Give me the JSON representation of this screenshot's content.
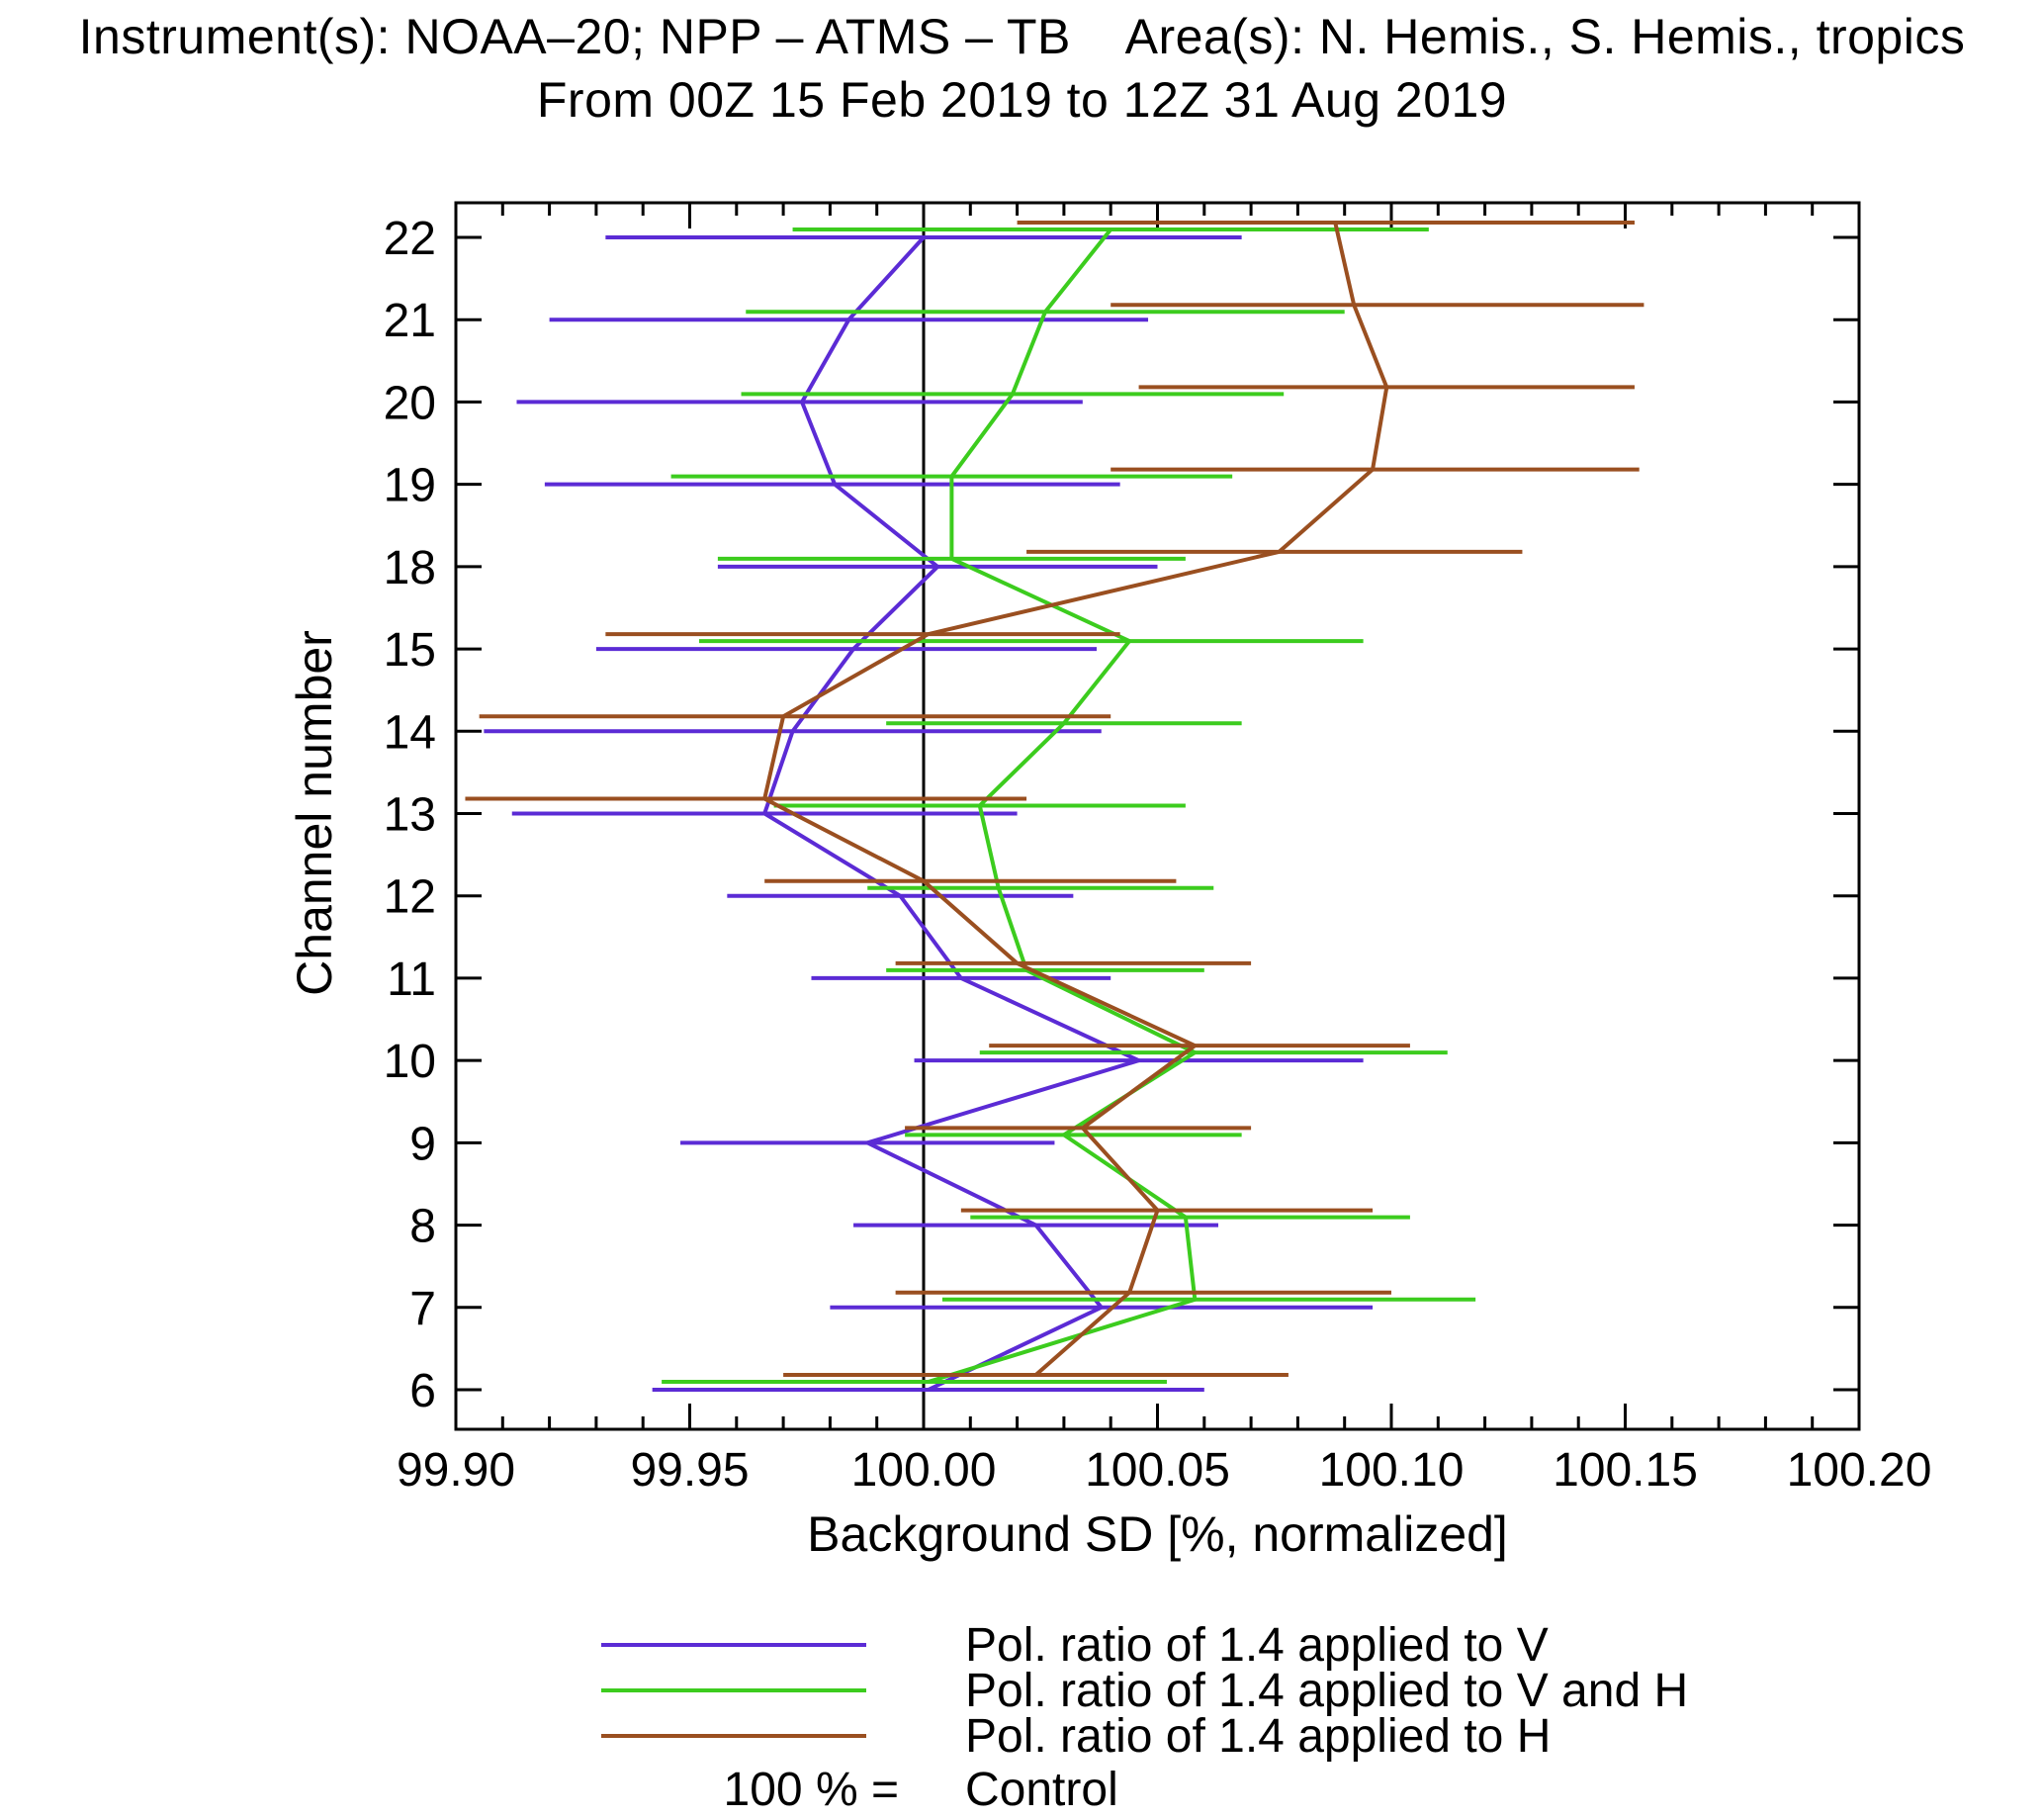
{
  "chart_data": {
    "type": "line",
    "title_line1": "Instrument(s): NOAA–20; NPP – ATMS – TB    Area(s): N. Hemis., S. Hemis., tropics",
    "title_line2": "From 00Z 15 Feb 2019 to 12Z 31 Aug 2019",
    "xlabel": "Background SD [%, normalized]",
    "ylabel": "Channel number",
    "xlim": [
      99.9,
      100.2
    ],
    "xticks": [
      99.9,
      99.95,
      100.0,
      100.05,
      100.1,
      100.15,
      100.2
    ],
    "xtick_labels": [
      "99.90",
      "99.95",
      "100.00",
      "100.05",
      "100.10",
      "100.15",
      "100.20"
    ],
    "x_minor_tick_step": 0.01,
    "grid": false,
    "legend_position": "bottom",
    "channels": [
      22,
      21,
      20,
      19,
      18,
      15,
      14,
      13,
      12,
      11,
      10,
      9,
      8,
      7,
      6
    ],
    "control_line": {
      "x": 100.0,
      "legend_prefix": "100 % =",
      "legend_label": "Control",
      "color": "#000000"
    },
    "series": [
      {
        "name": "Pol. ratio of 1.4 applied to V",
        "color": "#5b2bd5",
        "values": [
          100.0,
          99.984,
          99.974,
          99.981,
          100.003,
          99.985,
          99.972,
          99.966,
          99.995,
          100.008,
          100.046,
          99.988,
          100.024,
          100.038,
          100.001
        ],
        "err_low": [
          99.932,
          99.92,
          99.913,
          99.919,
          99.956,
          99.93,
          99.906,
          99.912,
          99.958,
          99.976,
          99.998,
          99.948,
          99.985,
          99.98,
          99.942
        ],
        "err_high": [
          100.068,
          100.048,
          100.034,
          100.042,
          100.05,
          100.037,
          100.038,
          100.02,
          100.032,
          100.04,
          100.094,
          100.028,
          100.063,
          100.096,
          100.06
        ]
      },
      {
        "name": "Pol. ratio of 1.4 applied to V and H",
        "color": "#3ccc1e",
        "values": [
          100.04,
          100.026,
          100.019,
          100.006,
          100.006,
          100.044,
          100.03,
          100.012,
          100.016,
          100.022,
          100.058,
          100.03,
          100.056,
          100.058,
          100.001
        ],
        "err_low": [
          99.972,
          99.962,
          99.961,
          99.946,
          99.956,
          99.952,
          99.992,
          99.968,
          99.988,
          99.992,
          100.012,
          99.996,
          100.01,
          100.004,
          99.944
        ],
        "err_high": [
          100.108,
          100.09,
          100.077,
          100.066,
          100.056,
          100.094,
          100.068,
          100.056,
          100.062,
          100.06,
          100.112,
          100.068,
          100.104,
          100.118,
          100.052
        ]
      },
      {
        "name": "Pol. ratio of 1.4 applied to H",
        "color": "#9a4f20",
        "values": [
          100.088,
          100.092,
          100.099,
          100.096,
          100.076,
          100.001,
          99.97,
          99.966,
          100.0,
          100.02,
          100.058,
          100.034,
          100.05,
          100.044,
          100.024
        ],
        "err_low": [
          100.02,
          100.04,
          100.046,
          100.04,
          100.022,
          99.932,
          99.905,
          99.902,
          99.966,
          99.994,
          100.014,
          99.996,
          100.008,
          99.994,
          99.97
        ],
        "err_high": [
          100.152,
          100.154,
          100.152,
          100.153,
          100.128,
          100.042,
          100.04,
          100.022,
          100.054,
          100.07,
          100.104,
          100.07,
          100.096,
          100.1,
          100.078
        ]
      }
    ]
  }
}
